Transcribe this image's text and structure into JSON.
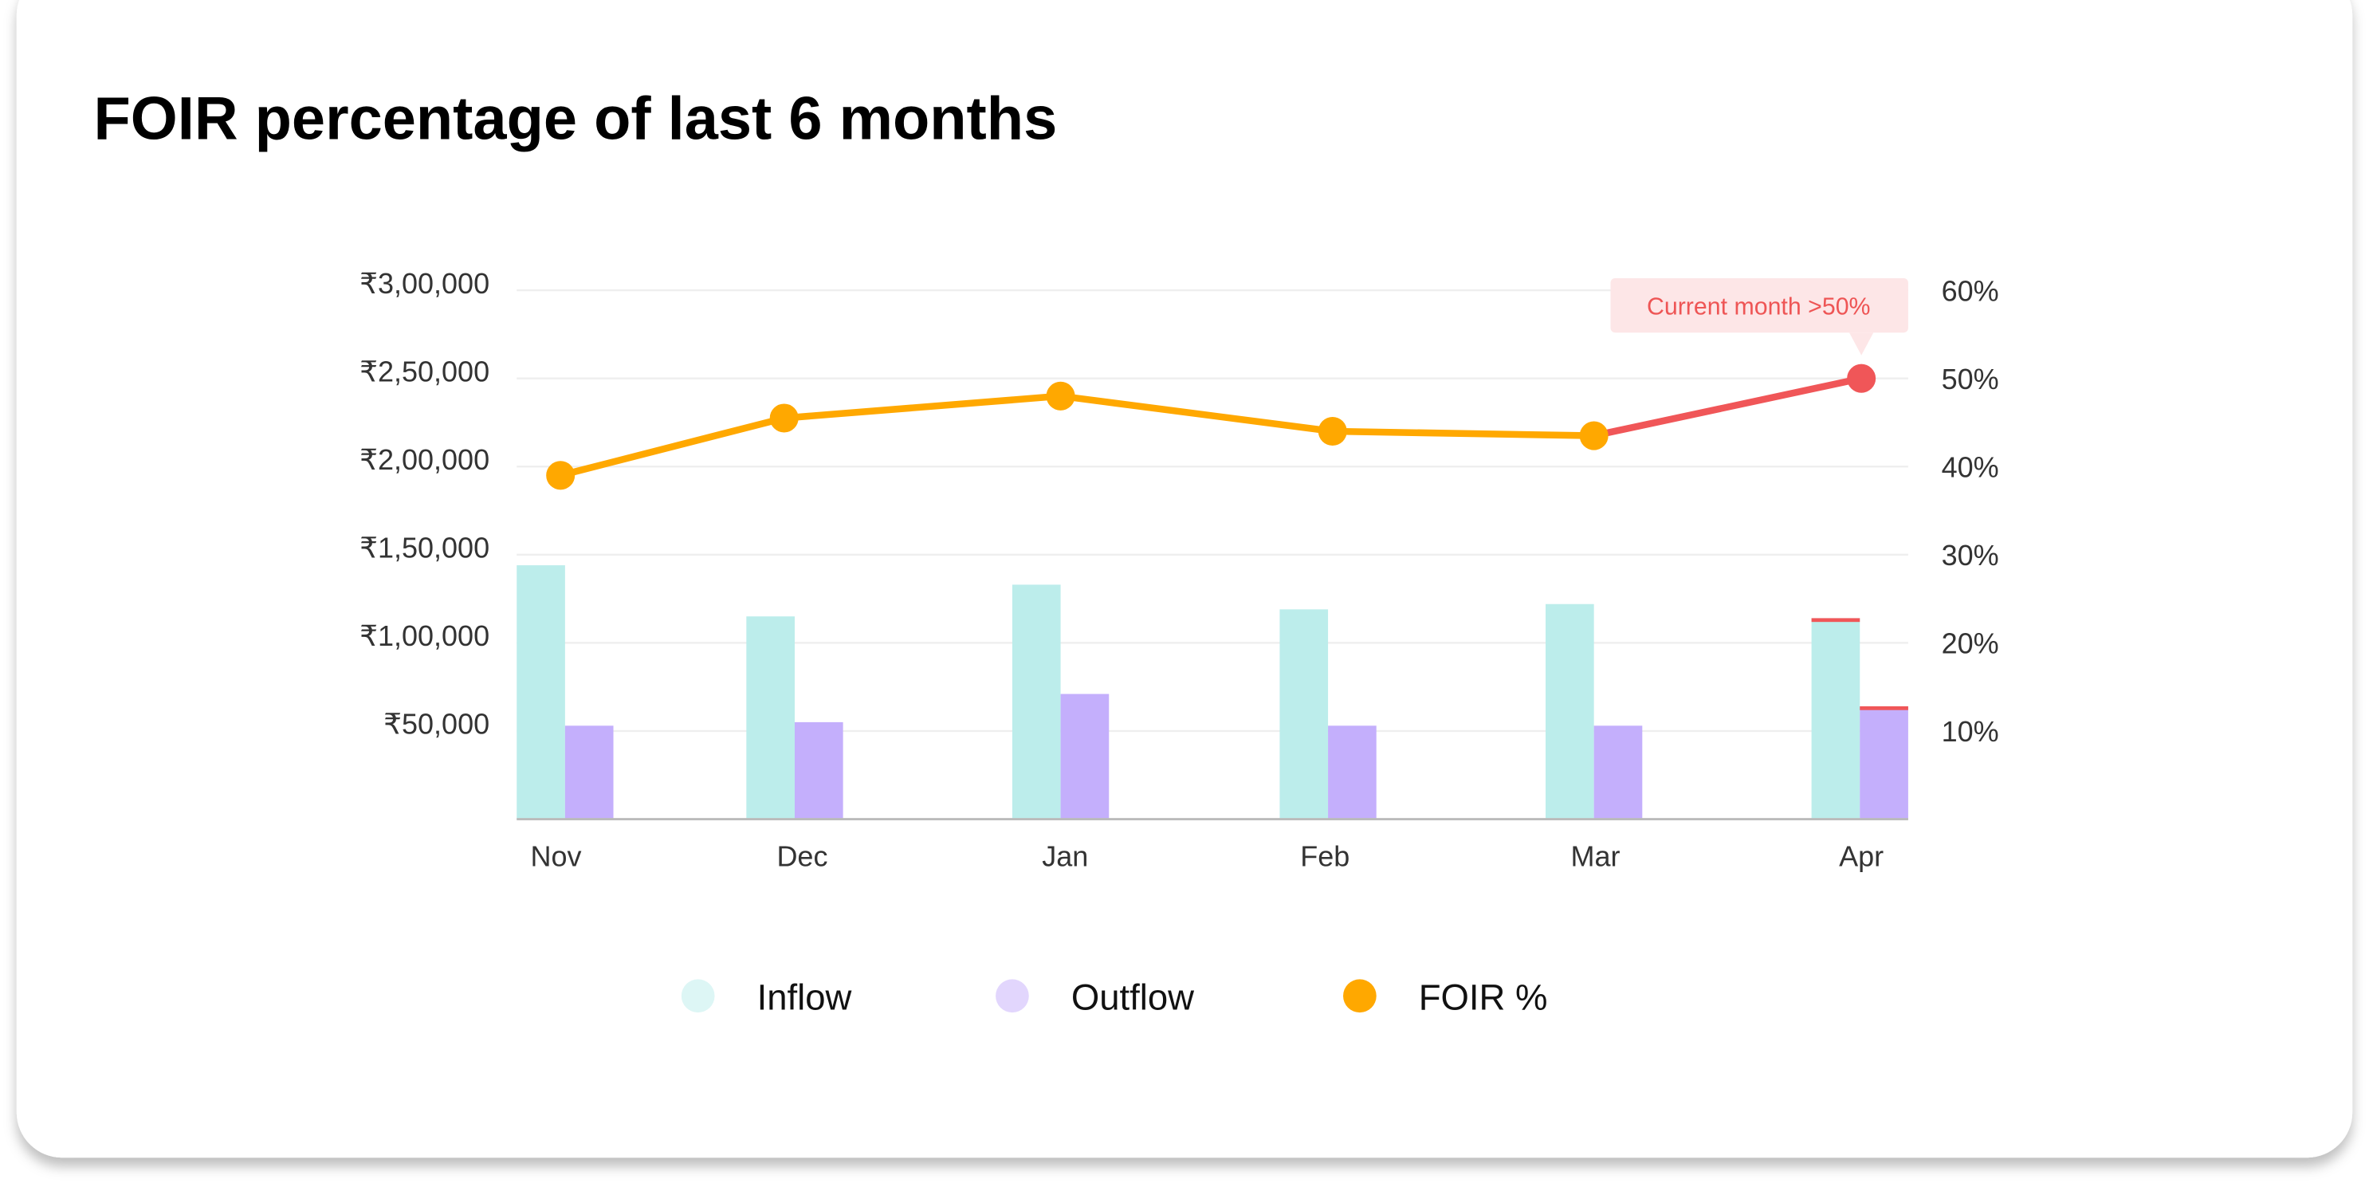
{
  "card": {
    "title": "FOIR percentage of last 6 months"
  },
  "colors": {
    "inflow": "#BCEDEB",
    "outflow": "#C4AFFC",
    "foir": "#FFA800",
    "alert": "#F05658",
    "legend_inflow": "#DDF6F5",
    "legend_outflow": "#E2D6FD",
    "tooltip_bg": "#FDE6E7",
    "grid": "#EEEEEE",
    "axis": "#BBBBBB"
  },
  "chart_data": {
    "type": "bar+line",
    "title": "FOIR percentage of last 6 months",
    "categories": [
      "Nov",
      "Dec",
      "Jan",
      "Feb",
      "Mar",
      "Apr"
    ],
    "series": [
      {
        "name": "Inflow",
        "type": "bar",
        "axis": "left",
        "values": [
          144000,
          115000,
          133000,
          119000,
          122000,
          114000
        ]
      },
      {
        "name": "Outflow",
        "type": "bar",
        "axis": "left",
        "values": [
          53000,
          55000,
          71000,
          53000,
          53000,
          64000
        ]
      },
      {
        "name": "FOIR %",
        "type": "line",
        "axis": "right",
        "values": [
          39,
          45.5,
          48,
          44,
          43.5,
          50
        ]
      }
    ],
    "left_axis": {
      "ylim": [
        0,
        300000
      ],
      "tick_labels": [
        "₹50,000",
        "₹1,00,000",
        "₹1,50,000",
        "₹2,00,000",
        "₹2,50,000",
        "₹3,00,000"
      ]
    },
    "right_axis": {
      "ylim": [
        0,
        60
      ],
      "tick_labels": [
        "10%",
        "20%",
        "30%",
        "40%",
        "50%",
        "60%"
      ]
    },
    "grid": true,
    "legend": {
      "placement": "bottom",
      "items": [
        "Inflow",
        "Outflow",
        "FOIR %"
      ]
    },
    "annotation": {
      "text": "Current month >50%",
      "category": "Apr"
    },
    "highlight_category": "Apr"
  }
}
